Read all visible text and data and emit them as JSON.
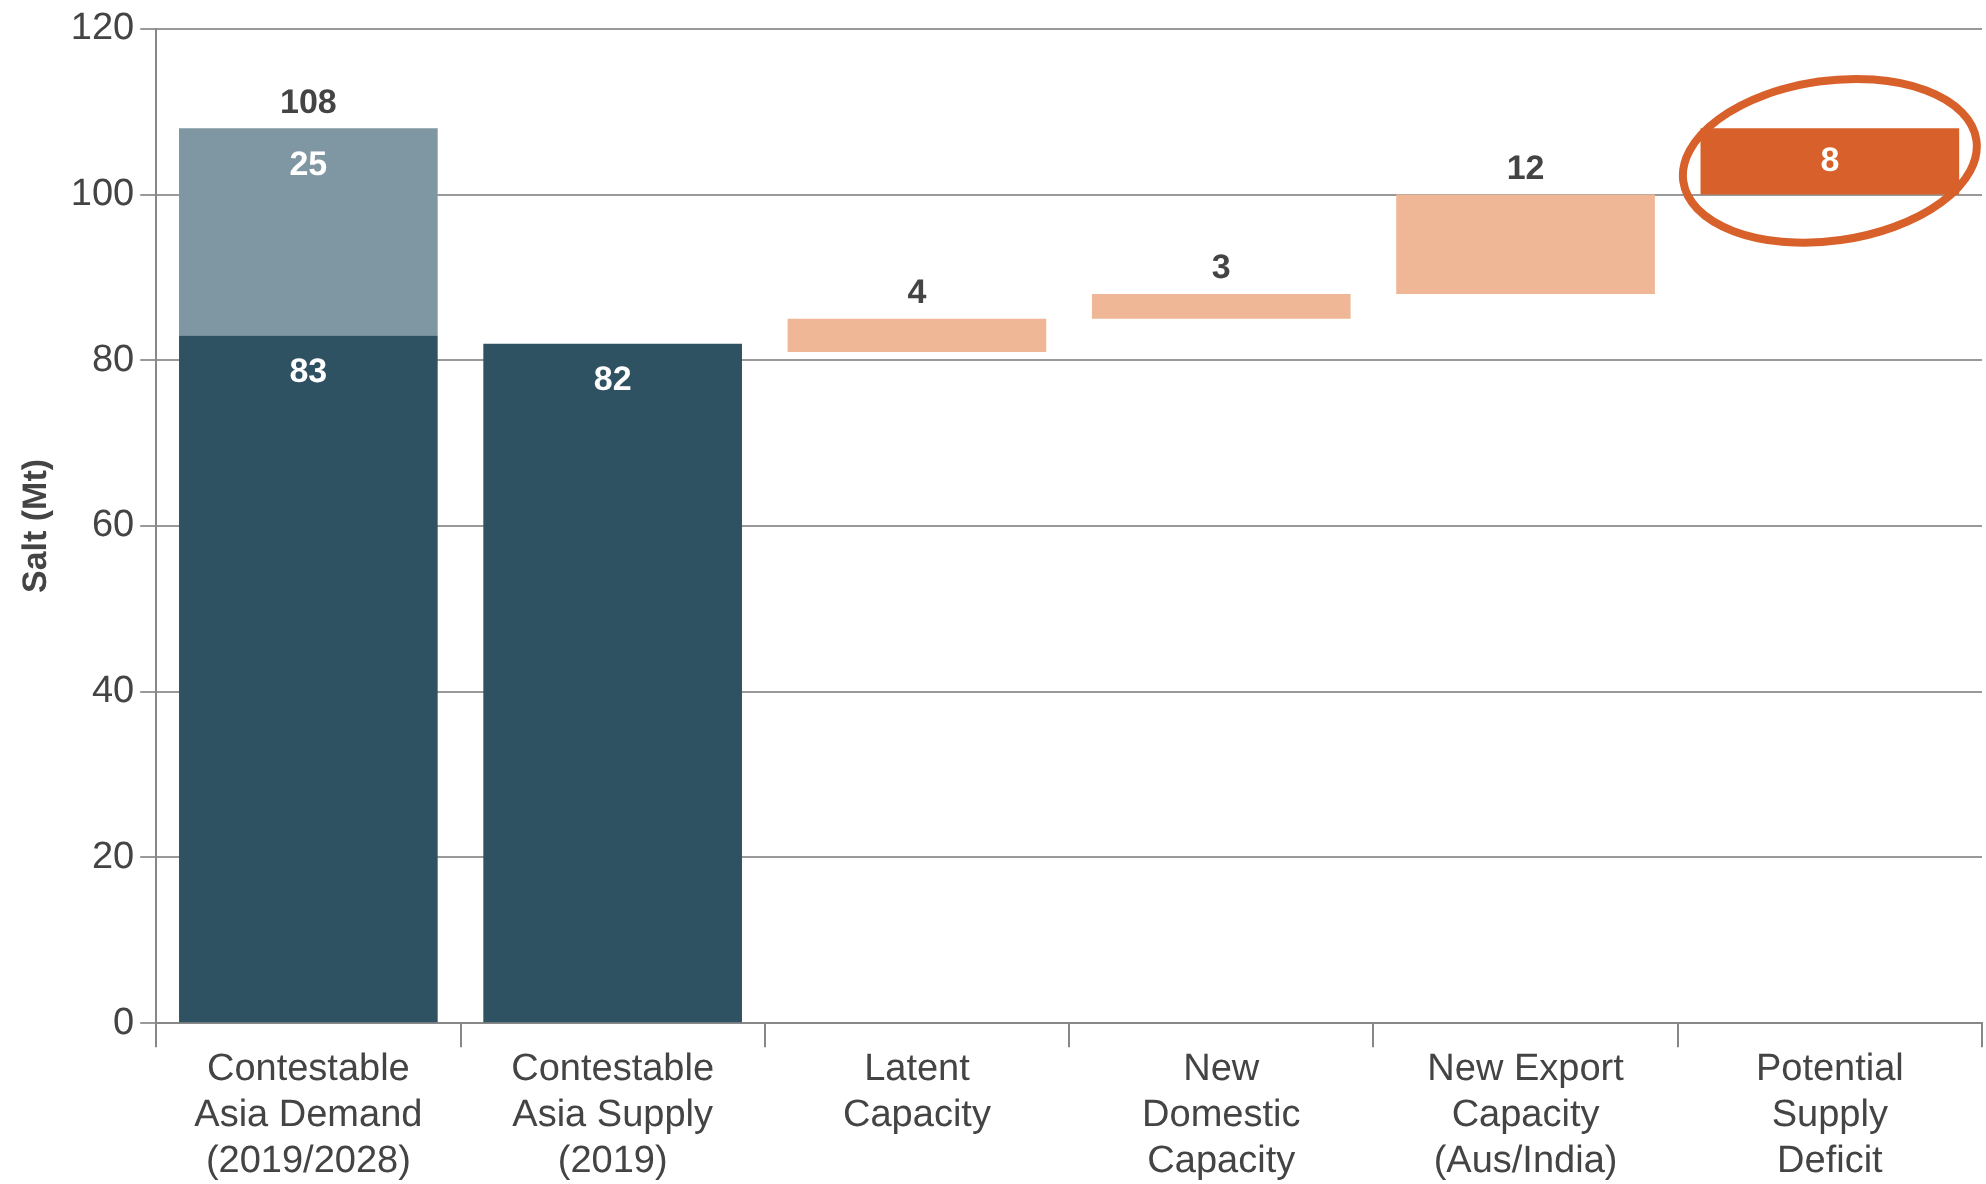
{
  "chart_data": {
    "type": "bar",
    "ylabel": "Salt (Mt)",
    "categories": [
      "Contestable\nAsia Demand\n(2019/2028)",
      "Contestable\nAsia Supply\n(2019)",
      "Latent\nCapacity",
      "New\nDomestic\nCapacity",
      "New Export\nCapacity\n(Aus/India)",
      "Potential\nSupply\nDeficit"
    ],
    "series": [
      {
        "color": "#2f5263",
        "values": [
          83,
          82,
          null,
          null,
          null,
          null
        ]
      },
      {
        "colors": [
          "#7f97a2",
          "#7f97a2",
          "#efb796",
          "#efb796",
          "#efb796",
          "#d8602a"
        ],
        "values": [
          25,
          null,
          4,
          3,
          12,
          8
        ],
        "base": [
          83,
          null,
          81,
          85,
          88,
          100
        ]
      }
    ],
    "totals": [
      "108",
      null,
      null,
      null,
      null,
      null
    ],
    "data_labels": true,
    "ylim": [
      0,
      120
    ],
    "yticks": [
      0,
      20,
      40,
      60,
      80,
      100,
      120
    ],
    "grid": "y",
    "legend": false
  }
}
